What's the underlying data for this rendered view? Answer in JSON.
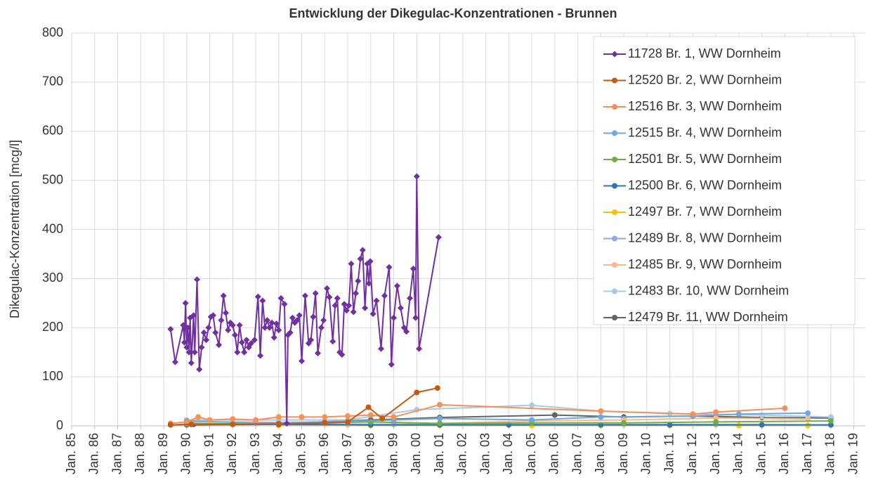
{
  "chart_data": {
    "type": "line",
    "title": "Entwicklung der Dikegulac-Konzentrationen  - Brunnen",
    "y_label": "Dikegulac-Konzentration [mcg/l]",
    "xlim": [
      1985,
      2019.5
    ],
    "xticks": [
      {
        "value": 1985,
        "label": "Jan. 85"
      },
      {
        "value": 1986,
        "label": "Jan. 86"
      },
      {
        "value": 1987,
        "label": "Jan. 87"
      },
      {
        "value": 1988,
        "label": "Jan. 88"
      },
      {
        "value": 1989,
        "label": "Jan. 89"
      },
      {
        "value": 1990,
        "label": "Jan. 90"
      },
      {
        "value": 1991,
        "label": "Jan. 91"
      },
      {
        "value": 1992,
        "label": "Jan. 92"
      },
      {
        "value": 1993,
        "label": "Jan. 93"
      },
      {
        "value": 1994,
        "label": "Jan. 94"
      },
      {
        "value": 1995,
        "label": "Jan. 95"
      },
      {
        "value": 1996,
        "label": "Jan. 96"
      },
      {
        "value": 1997,
        "label": "Jan. 97"
      },
      {
        "value": 1998,
        "label": "Jan. 98"
      },
      {
        "value": 1999,
        "label": "Jan. 99"
      },
      {
        "value": 2000,
        "label": "Jan. 00"
      },
      {
        "value": 2001,
        "label": "Jan. 01"
      },
      {
        "value": 2002,
        "label": "Jan. 02"
      },
      {
        "value": 2003,
        "label": "Jan. 03"
      },
      {
        "value": 2004,
        "label": "Jan. 04"
      },
      {
        "value": 2005,
        "label": "Jan. 05"
      },
      {
        "value": 2006,
        "label": "Jan. 06"
      },
      {
        "value": 2007,
        "label": "Jan. 07"
      },
      {
        "value": 2008,
        "label": "Jan. 08"
      },
      {
        "value": 2009,
        "label": "Jan. 09"
      },
      {
        "value": 2010,
        "label": "Jan. 10"
      },
      {
        "value": 2011,
        "label": "Jan. 11"
      },
      {
        "value": 2012,
        "label": "Jan. 12"
      },
      {
        "value": 2013,
        "label": "Jan. 13"
      },
      {
        "value": 2014,
        "label": "Jan. 14"
      },
      {
        "value": 2015,
        "label": "Jan. 15"
      },
      {
        "value": 2016,
        "label": "Jan. 16"
      },
      {
        "value": 2017,
        "label": "Jan. 17"
      },
      {
        "value": 2018,
        "label": "Jan. 18"
      },
      {
        "value": 2019,
        "label": "Jan. 19"
      }
    ],
    "ylim": [
      0,
      800
    ],
    "yticks": [
      0,
      100,
      200,
      300,
      400,
      500,
      600,
      700,
      800
    ],
    "grid": true,
    "legend": "top-right",
    "series": [
      {
        "name": "11728 Br. 1, WW Dornheim",
        "color": "#7030a0",
        "marker": "diamond",
        "x": [
          1989.3,
          1989.5,
          1989.85,
          1989.9,
          1989.95,
          1990.0,
          1990.05,
          1990.1,
          1990.15,
          1990.2,
          1990.3,
          1990.35,
          1990.45,
          1990.55,
          1990.65,
          1990.75,
          1990.85,
          1990.95,
          1991.05,
          1991.15,
          1991.25,
          1991.4,
          1991.5,
          1991.6,
          1991.7,
          1991.8,
          1991.9,
          1992.0,
          1992.1,
          1992.2,
          1992.3,
          1992.4,
          1992.5,
          1992.6,
          1992.7,
          1992.8,
          1992.95,
          1993.1,
          1993.2,
          1993.3,
          1993.4,
          1993.5,
          1993.6,
          1993.7,
          1993.8,
          1993.9,
          1994.0,
          1994.1,
          1994.25,
          1994.35,
          1994.4,
          1994.5,
          1994.6,
          1994.7,
          1994.8,
          1994.9,
          1995.0,
          1995.15,
          1995.3,
          1995.4,
          1995.5,
          1995.6,
          1995.7,
          1995.85,
          1995.95,
          1996.1,
          1996.2,
          1996.35,
          1996.45,
          1996.55,
          1996.65,
          1996.75,
          1996.85,
          1996.95,
          1997.05,
          1997.15,
          1997.25,
          1997.35,
          1997.45,
          1997.55,
          1997.65,
          1997.75,
          1997.85,
          1997.92,
          1997.98,
          1998.1,
          1998.25,
          1998.45,
          1998.6,
          1998.8,
          1998.9,
          1999.0,
          1999.15,
          1999.3,
          1999.45,
          1999.55,
          1999.7,
          1999.85,
          1999.95,
          2000.0,
          2000.1,
          2000.95
        ],
        "values": [
          197,
          130,
          205,
          170,
          250,
          160,
          200,
          150,
          220,
          128,
          225,
          150,
          298,
          115,
          160,
          190,
          175,
          200,
          222,
          225,
          190,
          165,
          215,
          265,
          230,
          195,
          210,
          205,
          185,
          150,
          205,
          170,
          150,
          175,
          160,
          168,
          175,
          263,
          143,
          255,
          200,
          215,
          200,
          210,
          180,
          208,
          195,
          260,
          248,
          5,
          185,
          190,
          220,
          210,
          215,
          225,
          132,
          265,
          168,
          175,
          222,
          270,
          148,
          200,
          215,
          280,
          262,
          172,
          245,
          260,
          150,
          145,
          248,
          235,
          245,
          330,
          232,
          270,
          295,
          340,
          358,
          240,
          330,
          290,
          335,
          228,
          255,
          157,
          265,
          323,
          125,
          220,
          285,
          240,
          200,
          192,
          260,
          320,
          220,
          508,
          157,
          384
        ]
      },
      {
        "name": "12520 Br. 2, WW Dornheim",
        "color": "#c55a11",
        "marker": "circle",
        "x": [
          1989.3,
          1990.2,
          1992,
          1994,
          1996,
          1997,
          1997.9,
          1998.5,
          2000,
          2000.9
        ],
        "values": [
          2,
          3,
          3,
          4,
          6,
          8,
          38,
          15,
          68,
          77
        ]
      },
      {
        "name": "12516 Br. 3, WW Dornheim",
        "color": "#f4905a",
        "marker": "circle",
        "x": [
          1989.3,
          1990,
          1990.5,
          1991,
          1992,
          1993,
          1994,
          1995,
          1996,
          1997,
          1998,
          1999,
          2001,
          2008,
          2012,
          2013,
          2016
        ],
        "values": [
          5,
          8,
          18,
          12,
          14,
          12,
          18,
          18,
          18,
          20,
          22,
          18,
          43,
          30,
          24,
          28,
          36
        ]
      },
      {
        "name": "12515 Br. 4, WW Dornheim",
        "color": "#6fa8dc",
        "marker": "circle",
        "x": [
          1990,
          1993,
          1996,
          1999,
          2001,
          2005,
          2008,
          2012,
          2014,
          2017
        ],
        "values": [
          10,
          6,
          8,
          12,
          15,
          12,
          18,
          20,
          24,
          26
        ]
      },
      {
        "name": "12501 Br. 5, WW Dornheim",
        "color": "#70ad47",
        "marker": "circle",
        "x": [
          1990,
          1994,
          1998,
          2001,
          2005,
          2009,
          2013,
          2018
        ],
        "values": [
          4,
          5,
          8,
          5,
          6,
          6,
          8,
          10
        ]
      },
      {
        "name": "12500 Br. 6, WW Dornheim",
        "color": "#2e75b6",
        "marker": "circle",
        "x": [
          1990,
          1994,
          1998,
          2001,
          2004,
          2008,
          2011,
          2015,
          2018
        ],
        "values": [
          2,
          3,
          2,
          2,
          2,
          2,
          2,
          2,
          2
        ]
      },
      {
        "name": "12497 Br. 7, WW Dornheim",
        "color": "#ffc000",
        "marker": "circle",
        "x": [
          1994,
          1998,
          2001,
          2005,
          2008,
          2011,
          2014,
          2017
        ],
        "values": [
          1,
          1,
          1,
          1,
          1,
          1,
          1,
          1
        ]
      },
      {
        "name": "12489 Br. 8, WW Dornheim",
        "color": "#8faadc",
        "marker": "circle",
        "x": [
          1990,
          1994,
          1999,
          2001,
          2005,
          2009,
          2013,
          2018
        ],
        "values": [
          5,
          4,
          3,
          3,
          3,
          3,
          3,
          2
        ]
      },
      {
        "name": "12485 Br. 9, WW Dornheim",
        "color": "#f8b98f",
        "marker": "circle",
        "x": [
          1990,
          1993,
          1997,
          2001,
          2005,
          2009,
          2013,
          2017
        ],
        "values": [
          8,
          8,
          2,
          5,
          10,
          12,
          16,
          14
        ]
      },
      {
        "name": "12483 Br. 10, WW Dornheim",
        "color": "#a9cbe8",
        "marker": "circle",
        "x": [
          1990,
          1994,
          1997,
          2000,
          2005,
          2008,
          2011,
          2015,
          2018
        ],
        "values": [
          12,
          12,
          12,
          33,
          42,
          30,
          25,
          22,
          18
        ]
      },
      {
        "name": "12479 Br. 11, WW Dornheim",
        "color": "#636363",
        "marker": "circle",
        "x": [
          1989.3,
          1990,
          1990.3,
          1994,
          1998,
          2001,
          2006,
          2009,
          2012,
          2015,
          2018
        ],
        "values": [
          2,
          3,
          3,
          5,
          12,
          17,
          22,
          18,
          20,
          17,
          16
        ]
      }
    ]
  }
}
